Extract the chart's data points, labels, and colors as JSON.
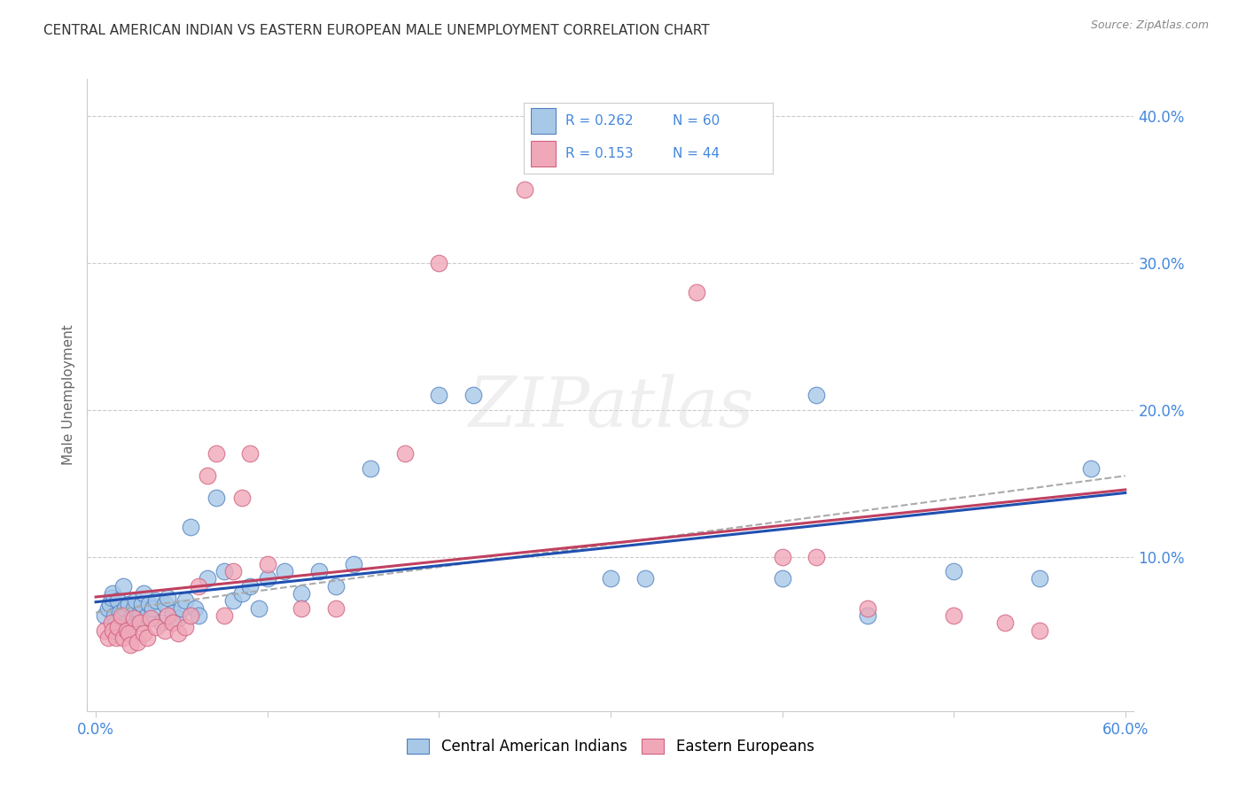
{
  "title": "CENTRAL AMERICAN INDIAN VS EASTERN EUROPEAN MALE UNEMPLOYMENT CORRELATION CHART",
  "source": "Source: ZipAtlas.com",
  "ylabel": "Male Unemployment",
  "xlabel": "",
  "xlim": [
    0.0,
    0.6
  ],
  "ylim": [
    0.0,
    0.42
  ],
  "xticks": [
    0.0,
    0.1,
    0.2,
    0.3,
    0.4,
    0.5,
    0.6
  ],
  "xtick_labels": [
    "0.0%",
    "",
    "",
    "",
    "",
    "",
    "60.0%"
  ],
  "ytick_right_vals": [
    0.1,
    0.2,
    0.3,
    0.4
  ],
  "ytick_right_labels": [
    "10.0%",
    "20.0%",
    "30.0%",
    "40.0%"
  ],
  "blue_color": "#A8C8E8",
  "pink_color": "#F0A8B8",
  "blue_edge_color": "#5080C0",
  "pink_edge_color": "#D06080",
  "blue_line_color": "#2050B0",
  "pink_line_color": "#C04060",
  "legend_R1": "0.262",
  "legend_N1": "60",
  "legend_R2": "0.153",
  "legend_N2": "44",
  "label1": "Central American Indians",
  "label2": "Eastern Europeans",
  "watermark": "ZIPatlas",
  "blue_x": [
    0.005,
    0.007,
    0.008,
    0.009,
    0.01,
    0.011,
    0.012,
    0.013,
    0.014,
    0.015,
    0.016,
    0.017,
    0.018,
    0.019,
    0.02,
    0.021,
    0.022,
    0.023,
    0.025,
    0.026,
    0.027,
    0.028,
    0.03,
    0.031,
    0.033,
    0.035,
    0.038,
    0.04,
    0.042,
    0.045,
    0.048,
    0.05,
    0.052,
    0.055,
    0.058,
    0.06,
    0.065,
    0.07,
    0.075,
    0.08,
    0.085,
    0.09,
    0.095,
    0.1,
    0.11,
    0.12,
    0.13,
    0.14,
    0.15,
    0.16,
    0.2,
    0.22,
    0.3,
    0.32,
    0.4,
    0.42,
    0.45,
    0.5,
    0.55,
    0.58
  ],
  "blue_y": [
    0.06,
    0.065,
    0.068,
    0.072,
    0.075,
    0.06,
    0.055,
    0.07,
    0.062,
    0.058,
    0.08,
    0.065,
    0.055,
    0.068,
    0.052,
    0.06,
    0.065,
    0.07,
    0.058,
    0.062,
    0.068,
    0.075,
    0.06,
    0.068,
    0.065,
    0.07,
    0.055,
    0.068,
    0.072,
    0.062,
    0.058,
    0.065,
    0.07,
    0.12,
    0.065,
    0.06,
    0.085,
    0.14,
    0.09,
    0.07,
    0.075,
    0.08,
    0.065,
    0.085,
    0.09,
    0.075,
    0.09,
    0.08,
    0.095,
    0.16,
    0.21,
    0.21,
    0.085,
    0.085,
    0.085,
    0.21,
    0.06,
    0.09,
    0.085,
    0.16
  ],
  "pink_x": [
    0.005,
    0.007,
    0.009,
    0.01,
    0.012,
    0.013,
    0.015,
    0.016,
    0.018,
    0.019,
    0.02,
    0.022,
    0.024,
    0.026,
    0.028,
    0.03,
    0.032,
    0.035,
    0.04,
    0.042,
    0.045,
    0.048,
    0.052,
    0.055,
    0.06,
    0.065,
    0.07,
    0.075,
    0.08,
    0.085,
    0.09,
    0.1,
    0.12,
    0.14,
    0.18,
    0.2,
    0.25,
    0.35,
    0.4,
    0.42,
    0.45,
    0.5,
    0.53,
    0.55
  ],
  "pink_y": [
    0.05,
    0.045,
    0.055,
    0.05,
    0.045,
    0.052,
    0.06,
    0.045,
    0.05,
    0.048,
    0.04,
    0.058,
    0.042,
    0.055,
    0.048,
    0.045,
    0.058,
    0.052,
    0.05,
    0.06,
    0.055,
    0.048,
    0.052,
    0.06,
    0.08,
    0.155,
    0.17,
    0.06,
    0.09,
    0.14,
    0.17,
    0.095,
    0.065,
    0.065,
    0.17,
    0.3,
    0.35,
    0.28,
    0.1,
    0.1,
    0.065,
    0.06,
    0.055,
    0.05
  ],
  "dashed_line": [
    0.062,
    0.155
  ]
}
